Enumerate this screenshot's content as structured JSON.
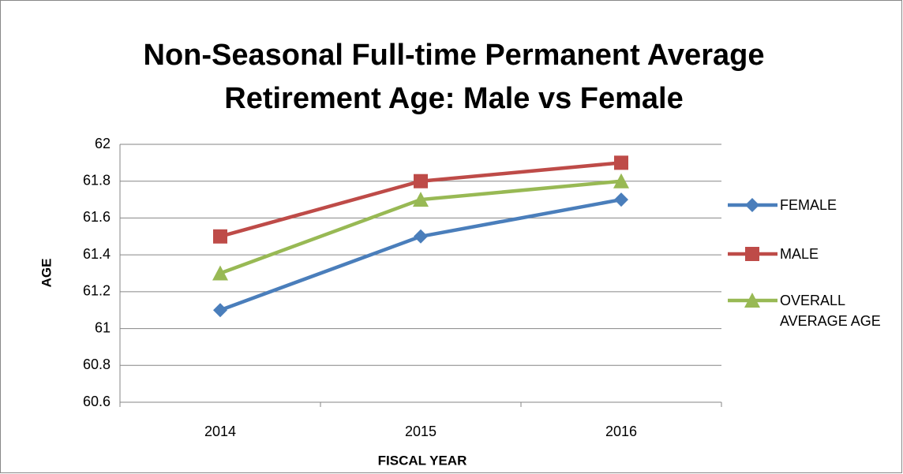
{
  "chart_data": {
    "type": "line",
    "title": [
      "Non-Seasonal Full-time Permanent Average",
      "Retirement Age: Male vs Female"
    ],
    "x_label": "FISCAL YEAR",
    "y_label": "AGE",
    "categories": [
      "2014",
      "2015",
      "2016"
    ],
    "series": [
      {
        "name": "FEMALE",
        "color": "#4a7ebb",
        "marker": "diamond",
        "values": [
          61.1,
          61.5,
          61.7
        ]
      },
      {
        "name": "MALE",
        "color": "#be4b48",
        "marker": "square",
        "values": [
          61.5,
          61.8,
          61.9
        ]
      },
      {
        "name": "OVERALL AVERAGE AGE",
        "color": "#98b954",
        "marker": "triangle",
        "values": [
          61.3,
          61.7,
          61.8
        ]
      }
    ],
    "ylim": [
      60.6,
      62
    ],
    "yticks": [
      60.6,
      60.8,
      61,
      61.2,
      61.4,
      61.6,
      61.8,
      62
    ],
    "grid": true,
    "legend": "right"
  }
}
